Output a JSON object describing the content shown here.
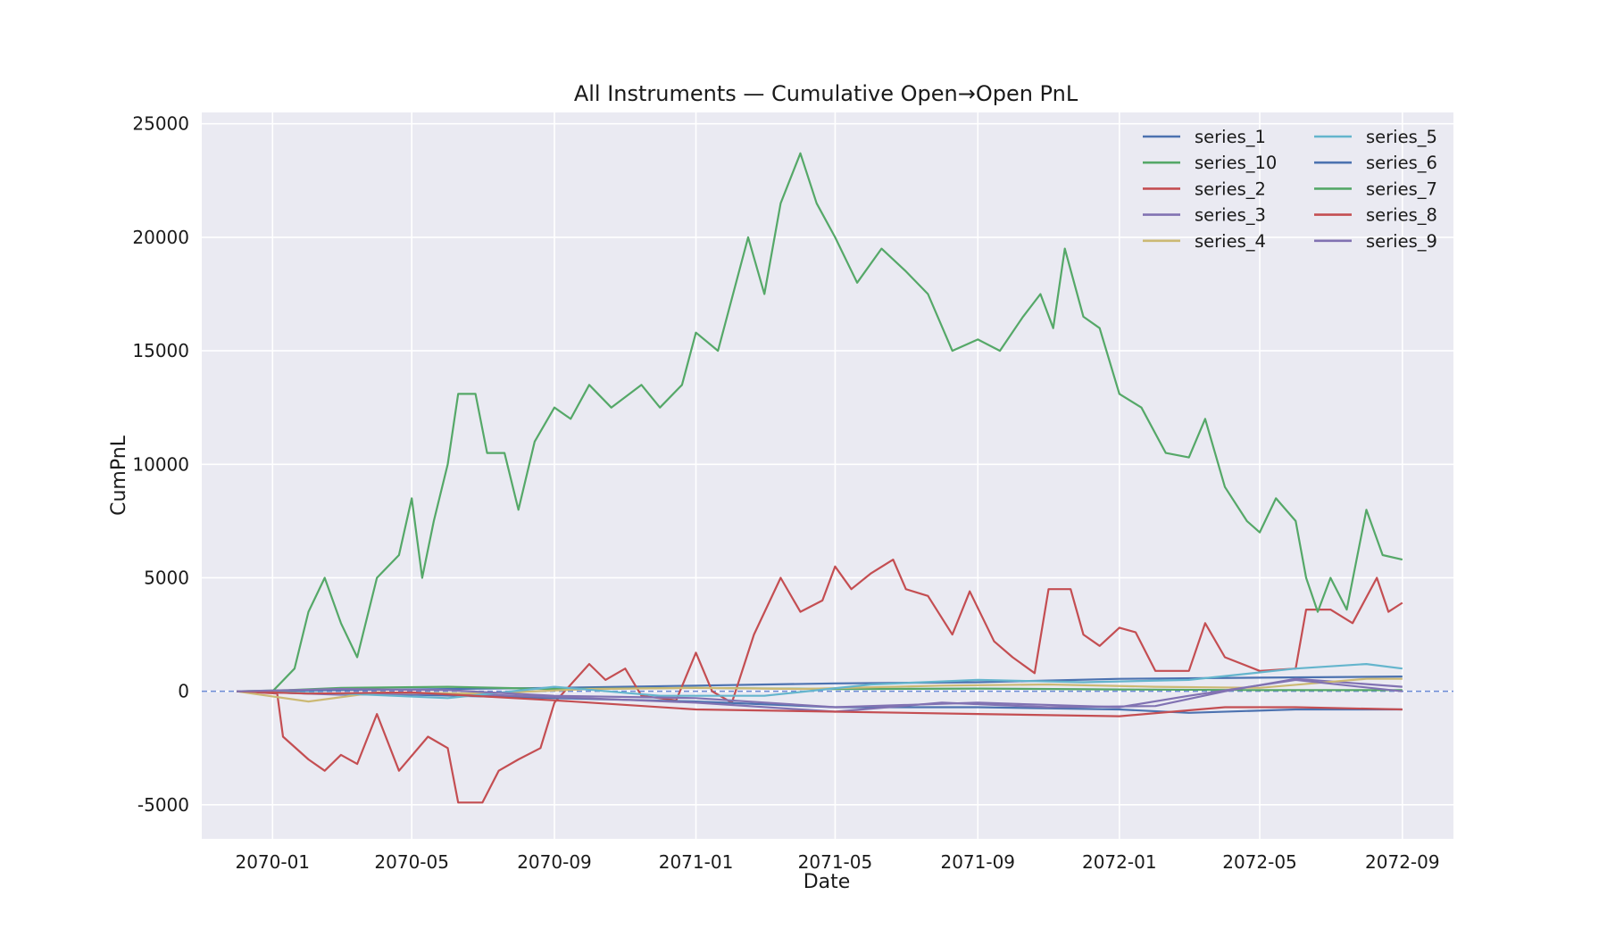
{
  "chart_data": {
    "type": "line",
    "title": "All Instruments — Cumulative Open→Open PnL",
    "xlabel": "Date",
    "ylabel": "CumPnL",
    "x_range": [
      "2069-11-01",
      "2072-10-15"
    ],
    "ylim": [
      -6500,
      25500
    ],
    "x_ticks": [
      "2070-01",
      "2070-05",
      "2070-09",
      "2071-01",
      "2071-05",
      "2071-09",
      "2072-01",
      "2072-05",
      "2072-09"
    ],
    "y_ticks": [
      -5000,
      0,
      5000,
      10000,
      15000,
      20000,
      25000
    ],
    "grid": true,
    "background": "#eaeaf2",
    "grid_color": "#ffffff",
    "reference_line": {
      "y": 0,
      "style": "dashed",
      "color": "#6b8ad6"
    },
    "legend": {
      "position": "top-right",
      "columns": 2
    },
    "series": [
      {
        "name": "series_1",
        "color": "#4c72b0",
        "points": [
          [
            "2069-12-01",
            0
          ],
          [
            "2070-02-01",
            -100
          ],
          [
            "2070-05-01",
            -150
          ],
          [
            "2070-09-01",
            -300
          ],
          [
            "2071-01-01",
            -450
          ],
          [
            "2071-05-01",
            -700
          ],
          [
            "2071-09-01",
            -700
          ],
          [
            "2072-01-01",
            -800
          ],
          [
            "2072-03-01",
            -950
          ],
          [
            "2072-06-01",
            -800
          ],
          [
            "2072-09-01",
            -800
          ]
        ]
      },
      {
        "name": "series_10",
        "color": "#55a868",
        "points": [
          [
            "2069-12-01",
            0
          ],
          [
            "2070-01-15",
            50
          ],
          [
            "2070-03-01",
            150
          ],
          [
            "2070-06-01",
            200
          ],
          [
            "2070-09-01",
            100
          ],
          [
            "2071-01-01",
            150
          ],
          [
            "2071-05-01",
            100
          ],
          [
            "2071-09-01",
            120
          ],
          [
            "2072-01-01",
            80
          ],
          [
            "2072-05-01",
            50
          ],
          [
            "2072-09-01",
            50
          ]
        ]
      },
      {
        "name": "series_2",
        "color": "#c44e52",
        "points": [
          [
            "2069-12-01",
            0
          ],
          [
            "2070-01-05",
            -100
          ],
          [
            "2070-01-10",
            -2000
          ],
          [
            "2070-02-01",
            -3000
          ],
          [
            "2070-02-15",
            -3500
          ],
          [
            "2070-03-01",
            -2800
          ],
          [
            "2070-03-15",
            -3200
          ],
          [
            "2070-04-01",
            -1000
          ],
          [
            "2070-04-20",
            -3500
          ],
          [
            "2070-05-15",
            -2000
          ],
          [
            "2070-06-01",
            -2500
          ],
          [
            "2070-06-10",
            -4900
          ],
          [
            "2070-07-01",
            -4900
          ],
          [
            "2070-07-15",
            -3500
          ],
          [
            "2070-08-01",
            -3000
          ],
          [
            "2070-08-20",
            -2500
          ],
          [
            "2070-09-01",
            -500
          ],
          [
            "2070-10-01",
            1200
          ],
          [
            "2070-10-15",
            500
          ],
          [
            "2070-11-01",
            1000
          ],
          [
            "2070-11-15",
            -200
          ],
          [
            "2070-12-15",
            -400
          ],
          [
            "2071-01-01",
            1700
          ],
          [
            "2071-01-15",
            0
          ],
          [
            "2071-02-01",
            -500
          ],
          [
            "2071-02-20",
            2500
          ],
          [
            "2071-03-15",
            5000
          ],
          [
            "2071-04-01",
            3500
          ],
          [
            "2071-04-20",
            4000
          ],
          [
            "2071-05-01",
            5500
          ],
          [
            "2071-05-15",
            4500
          ],
          [
            "2071-06-01",
            5200
          ],
          [
            "2071-06-20",
            5800
          ],
          [
            "2071-07-01",
            4500
          ],
          [
            "2071-07-20",
            4200
          ],
          [
            "2071-08-10",
            2500
          ],
          [
            "2071-08-25",
            4400
          ],
          [
            "2071-09-15",
            2200
          ],
          [
            "2071-10-01",
            1500
          ],
          [
            "2071-10-20",
            800
          ],
          [
            "2071-11-01",
            4500
          ],
          [
            "2071-11-20",
            4500
          ],
          [
            "2071-12-01",
            2500
          ],
          [
            "2071-12-15",
            2000
          ],
          [
            "2072-01-01",
            2800
          ],
          [
            "2072-01-15",
            2600
          ],
          [
            "2072-02-01",
            900
          ],
          [
            "2072-03-01",
            900
          ],
          [
            "2072-03-15",
            3000
          ],
          [
            "2072-04-01",
            1500
          ],
          [
            "2072-05-01",
            900
          ],
          [
            "2072-06-01",
            1000
          ],
          [
            "2072-06-10",
            3600
          ],
          [
            "2072-07-01",
            3600
          ],
          [
            "2072-07-20",
            3000
          ],
          [
            "2072-08-10",
            5000
          ],
          [
            "2072-08-20",
            3500
          ],
          [
            "2072-09-01",
            3900
          ]
        ]
      },
      {
        "name": "series_3",
        "color": "#8172b2",
        "points": [
          [
            "2069-12-01",
            0
          ],
          [
            "2070-03-01",
            -150
          ],
          [
            "2070-06-01",
            -100
          ],
          [
            "2070-09-01",
            -250
          ],
          [
            "2071-01-01",
            -500
          ],
          [
            "2071-05-01",
            -900
          ],
          [
            "2071-08-01",
            -500
          ],
          [
            "2071-11-01",
            -700
          ],
          [
            "2072-02-01",
            -650
          ],
          [
            "2072-04-01",
            0
          ],
          [
            "2072-06-01",
            550
          ],
          [
            "2072-09-01",
            200
          ]
        ]
      },
      {
        "name": "series_4",
        "color": "#ccb974",
        "points": [
          [
            "2069-12-01",
            0
          ],
          [
            "2070-02-01",
            -450
          ],
          [
            "2070-04-01",
            -50
          ],
          [
            "2070-07-01",
            -100
          ],
          [
            "2070-10-01",
            100
          ],
          [
            "2071-01-01",
            150
          ],
          [
            "2071-04-01",
            100
          ],
          [
            "2071-08-01",
            250
          ],
          [
            "2071-11-01",
            300
          ],
          [
            "2072-02-01",
            200
          ],
          [
            "2072-05-01",
            150
          ],
          [
            "2072-08-01",
            550
          ],
          [
            "2072-09-01",
            550
          ]
        ]
      },
      {
        "name": "series_5",
        "color": "#64b5cd",
        "points": [
          [
            "2069-12-01",
            0
          ],
          [
            "2070-03-01",
            -100
          ],
          [
            "2070-06-01",
            -300
          ],
          [
            "2070-09-01",
            200
          ],
          [
            "2070-12-01",
            -200
          ],
          [
            "2071-03-01",
            -200
          ],
          [
            "2071-06-01",
            300
          ],
          [
            "2071-09-01",
            500
          ],
          [
            "2071-12-01",
            400
          ],
          [
            "2072-03-01",
            500
          ],
          [
            "2072-06-01",
            1000
          ],
          [
            "2072-08-01",
            1200
          ],
          [
            "2072-09-01",
            1000
          ]
        ]
      },
      {
        "name": "series_6",
        "color": "#4c72b0",
        "points": [
          [
            "2069-12-01",
            0
          ],
          [
            "2070-03-01",
            50
          ],
          [
            "2070-06-01",
            100
          ],
          [
            "2070-09-01",
            150
          ],
          [
            "2071-01-01",
            250
          ],
          [
            "2071-05-01",
            350
          ],
          [
            "2071-09-01",
            400
          ],
          [
            "2072-01-01",
            550
          ],
          [
            "2072-05-01",
            600
          ],
          [
            "2072-09-01",
            650
          ]
        ]
      },
      {
        "name": "series_7",
        "color": "#55a868",
        "points": [
          [
            "2069-12-01",
            0
          ],
          [
            "2070-01-01",
            0
          ],
          [
            "2070-01-20",
            1000
          ],
          [
            "2070-02-01",
            3500
          ],
          [
            "2070-02-15",
            5000
          ],
          [
            "2070-03-01",
            3000
          ],
          [
            "2070-03-15",
            1500
          ],
          [
            "2070-04-01",
            5000
          ],
          [
            "2070-04-20",
            6000
          ],
          [
            "2070-05-01",
            8500
          ],
          [
            "2070-05-10",
            5000
          ],
          [
            "2070-05-20",
            7500
          ],
          [
            "2070-06-01",
            10000
          ],
          [
            "2070-06-10",
            13100
          ],
          [
            "2070-06-25",
            13100
          ],
          [
            "2070-07-05",
            10500
          ],
          [
            "2070-07-20",
            10500
          ],
          [
            "2070-08-01",
            8000
          ],
          [
            "2070-08-15",
            11000
          ],
          [
            "2070-09-01",
            12500
          ],
          [
            "2070-09-15",
            12000
          ],
          [
            "2070-10-01",
            13500
          ],
          [
            "2070-10-20",
            12500
          ],
          [
            "2070-11-15",
            13500
          ],
          [
            "2070-12-01",
            12500
          ],
          [
            "2070-12-20",
            13500
          ],
          [
            "2071-01-01",
            15800
          ],
          [
            "2071-01-20",
            15000
          ],
          [
            "2071-02-15",
            20000
          ],
          [
            "2071-03-01",
            17500
          ],
          [
            "2071-03-15",
            21500
          ],
          [
            "2071-04-01",
            23700
          ],
          [
            "2071-04-15",
            21500
          ],
          [
            "2071-05-01",
            20000
          ],
          [
            "2071-05-20",
            18000
          ],
          [
            "2071-06-10",
            19500
          ],
          [
            "2071-07-01",
            18500
          ],
          [
            "2071-07-20",
            17500
          ],
          [
            "2071-08-10",
            15000
          ],
          [
            "2071-09-01",
            15500
          ],
          [
            "2071-09-20",
            15000
          ],
          [
            "2071-10-10",
            16500
          ],
          [
            "2071-10-25",
            17500
          ],
          [
            "2071-11-05",
            16000
          ],
          [
            "2071-11-15",
            19500
          ],
          [
            "2071-12-01",
            16500
          ],
          [
            "2071-12-15",
            16000
          ],
          [
            "2072-01-01",
            13100
          ],
          [
            "2072-01-20",
            12500
          ],
          [
            "2072-02-10",
            10500
          ],
          [
            "2072-03-01",
            10300
          ],
          [
            "2072-03-15",
            12000
          ],
          [
            "2072-04-01",
            9000
          ],
          [
            "2072-04-20",
            7500
          ],
          [
            "2072-05-01",
            7000
          ],
          [
            "2072-05-15",
            8500
          ],
          [
            "2072-06-01",
            7500
          ],
          [
            "2072-06-10",
            5000
          ],
          [
            "2072-06-20",
            3500
          ],
          [
            "2072-07-01",
            5000
          ],
          [
            "2072-07-15",
            3600
          ],
          [
            "2072-08-01",
            8000
          ],
          [
            "2072-08-15",
            6000
          ],
          [
            "2072-09-01",
            5800
          ]
        ]
      },
      {
        "name": "series_8",
        "color": "#c44e52",
        "points": [
          [
            "2069-12-01",
            0
          ],
          [
            "2070-02-01",
            -100
          ],
          [
            "2070-05-01",
            -50
          ],
          [
            "2070-09-01",
            -400
          ],
          [
            "2071-01-01",
            -800
          ],
          [
            "2071-05-01",
            -900
          ],
          [
            "2071-09-01",
            -1000
          ],
          [
            "2072-01-01",
            -1100
          ],
          [
            "2072-04-01",
            -700
          ],
          [
            "2072-06-01",
            -700
          ],
          [
            "2072-09-01",
            -800
          ]
        ]
      },
      {
        "name": "series_9",
        "color": "#8172b2",
        "points": [
          [
            "2069-12-01",
            0
          ],
          [
            "2070-03-01",
            100
          ],
          [
            "2070-06-01",
            50
          ],
          [
            "2070-09-01",
            -200
          ],
          [
            "2071-01-01",
            -300
          ],
          [
            "2071-05-01",
            -700
          ],
          [
            "2071-09-01",
            -500
          ],
          [
            "2072-01-01",
            -700
          ],
          [
            "2072-03-01",
            -200
          ],
          [
            "2072-06-01",
            500
          ],
          [
            "2072-09-01",
            0
          ]
        ]
      }
    ]
  }
}
